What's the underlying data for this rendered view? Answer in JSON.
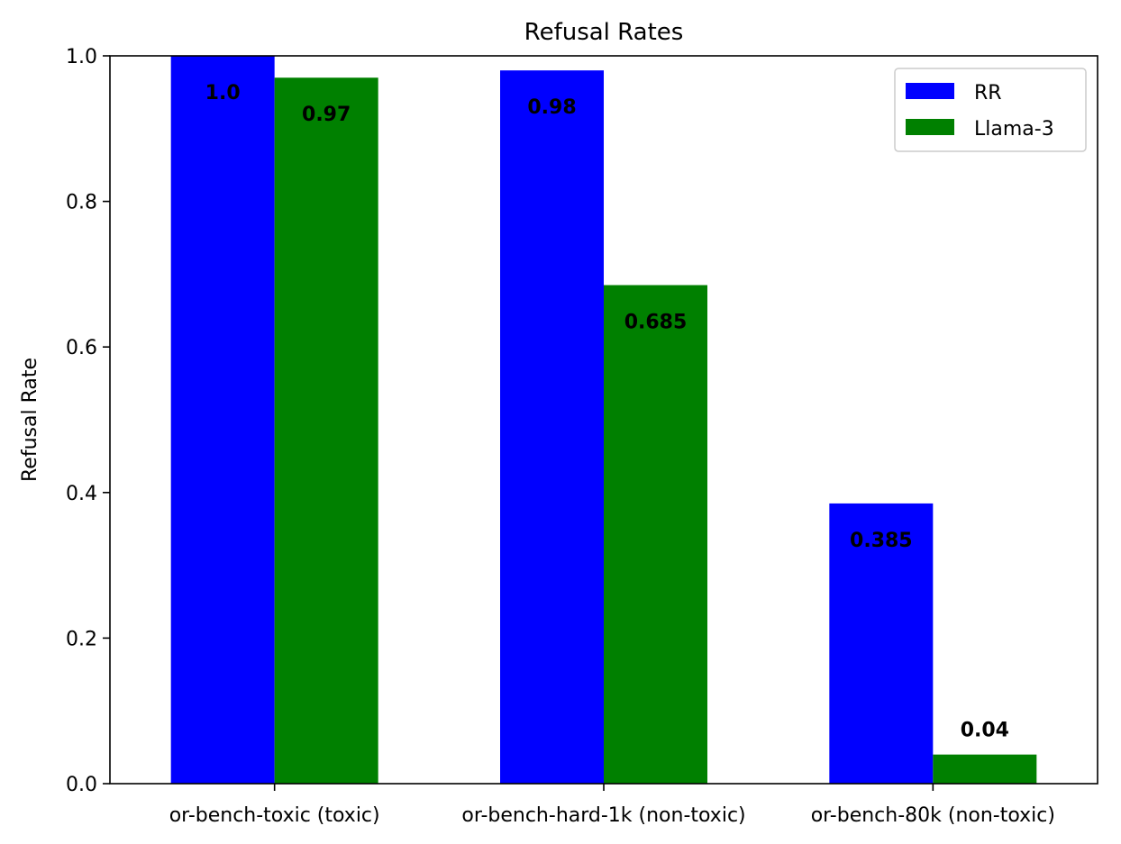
{
  "chart_data": {
    "type": "bar",
    "title": "Refusal Rates",
    "xlabel": "",
    "ylabel": "Refusal Rate",
    "ylim": [
      0,
      1.0
    ],
    "yticks": [
      0.0,
      0.2,
      0.4,
      0.6,
      0.8,
      1.0
    ],
    "ytick_labels": [
      "0.0",
      "0.2",
      "0.4",
      "0.6",
      "0.8",
      "1.0"
    ],
    "categories": [
      "or-bench-toxic (toxic)",
      "or-bench-hard-1k (non-toxic)",
      "or-bench-80k (non-toxic)"
    ],
    "series": [
      {
        "name": "RR",
        "color": "#0000ff",
        "values": [
          1.0,
          0.98,
          0.385
        ],
        "labels": [
          "1.0",
          "0.98",
          "0.385"
        ]
      },
      {
        "name": "Llama-3",
        "color": "#008000",
        "values": [
          0.97,
          0.685,
          0.04
        ],
        "labels": [
          "0.97",
          "0.685",
          "0.04"
        ]
      }
    ],
    "grid": false,
    "legend": "top-right"
  }
}
